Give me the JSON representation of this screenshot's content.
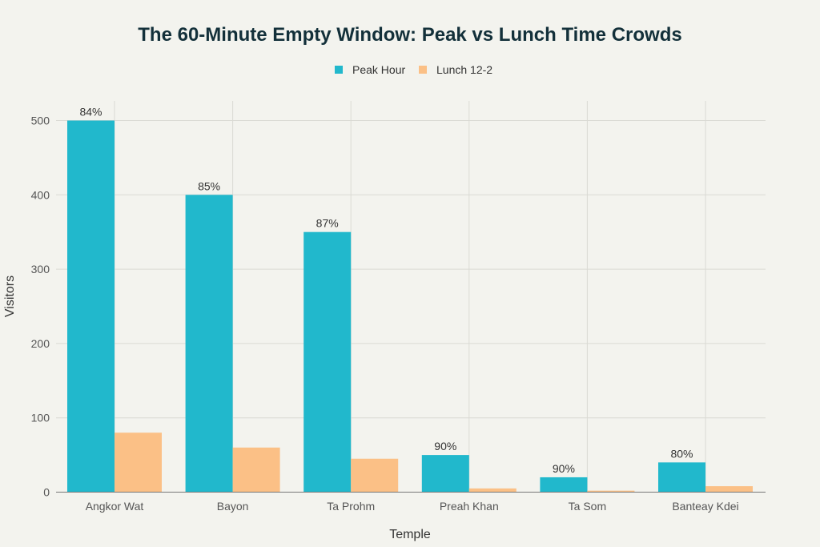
{
  "chart_data": {
    "type": "bar",
    "title": "The 60-Minute Empty Window: Peak vs Lunch Time Crowds",
    "xlabel": "Temple",
    "ylabel": "Visitors",
    "ylim": [
      0,
      525
    ],
    "yticks": [
      0,
      100,
      200,
      300,
      400,
      500
    ],
    "ytick_labels": [
      "0",
      "100",
      "200",
      "300",
      "400",
      "500"
    ],
    "grid": true,
    "legend_position": "top-center",
    "categories": [
      "Angkor Wat",
      "Bayon",
      "Ta Prohm",
      "Preah Khan",
      "Ta Som",
      "Banteay Kdei"
    ],
    "series": [
      {
        "name": "Peak Hour",
        "color": "#21b8cc",
        "values": [
          500,
          400,
          350,
          50,
          20,
          40
        ]
      },
      {
        "name": "Lunch 12-2",
        "color": "#fbc086",
        "values": [
          80,
          60,
          45,
          5,
          2,
          8
        ]
      }
    ],
    "annotations": [
      "84%",
      "85%",
      "87%",
      "90%",
      "90%",
      "80%"
    ]
  }
}
